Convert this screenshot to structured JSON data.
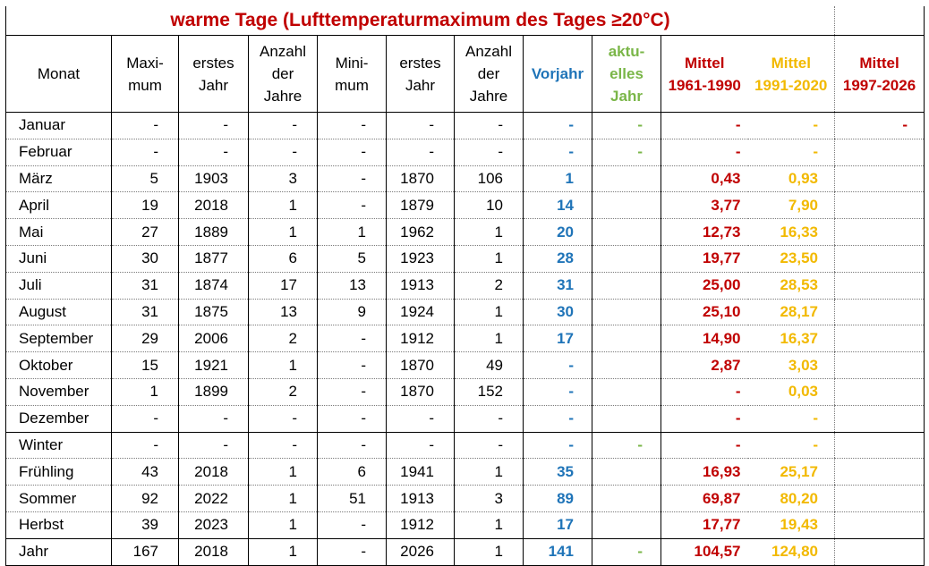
{
  "title": "warme Tage (Lufttemperaturmaximum des Tages ≥20°C)",
  "colors": {
    "title": "#c00000",
    "vorjahr": "#1f74b8",
    "aktuell": "#7ab648",
    "mittel_1961": "#c00000",
    "mittel_1991": "#f2b900",
    "mittel_1997": "#c00000"
  },
  "headers": {
    "monat": [
      "Monat"
    ],
    "maximum": [
      "Maxi-",
      "mum"
    ],
    "erstes_jahr_max": [
      "erstes",
      "Jahr"
    ],
    "anzahl_max": [
      "Anzahl",
      "der",
      "Jahre"
    ],
    "minimum": [
      "Mini-",
      "mum"
    ],
    "erstes_jahr_min": [
      "erstes",
      "Jahr"
    ],
    "anzahl_min": [
      "Anzahl",
      "der",
      "Jahre"
    ],
    "vorjahr": [
      "Vorjahr"
    ],
    "aktuell": [
      "aktu-",
      "elles",
      "Jahr"
    ],
    "mittel_1961": [
      "Mittel",
      "1961-1990"
    ],
    "mittel_1991": [
      "Mittel",
      "1991-2020"
    ],
    "mittel_1997": [
      "Mittel",
      "1997-2026"
    ]
  },
  "rows": [
    {
      "monat": "Januar",
      "max": "-",
      "jmax": "-",
      "nmax": "-",
      "min": "-",
      "jmin": "-",
      "nmin": "-",
      "vorjahr": "-",
      "aktuell": "-",
      "m1961": "-",
      "m1991": "-",
      "m1997": "-"
    },
    {
      "monat": "Februar",
      "max": "-",
      "jmax": "-",
      "nmax": "-",
      "min": "-",
      "jmin": "-",
      "nmin": "-",
      "vorjahr": "-",
      "aktuell": "-",
      "m1961": "-",
      "m1991": "-",
      "m1997": ""
    },
    {
      "monat": "März",
      "max": "5",
      "jmax": "1903",
      "nmax": "3",
      "min": "-",
      "jmin": "1870",
      "nmin": "106",
      "vorjahr": "1",
      "aktuell": "",
      "m1961": "0,43",
      "m1991": "0,93",
      "m1997": ""
    },
    {
      "monat": "April",
      "max": "19",
      "jmax": "2018",
      "nmax": "1",
      "min": "-",
      "jmin": "1879",
      "nmin": "10",
      "vorjahr": "14",
      "aktuell": "",
      "m1961": "3,77",
      "m1991": "7,90",
      "m1997": ""
    },
    {
      "monat": "Mai",
      "max": "27",
      "jmax": "1889",
      "nmax": "1",
      "min": "1",
      "jmin": "1962",
      "nmin": "1",
      "vorjahr": "20",
      "aktuell": "",
      "m1961": "12,73",
      "m1991": "16,33",
      "m1997": ""
    },
    {
      "monat": "Juni",
      "max": "30",
      "jmax": "1877",
      "nmax": "6",
      "min": "5",
      "jmin": "1923",
      "nmin": "1",
      "vorjahr": "28",
      "aktuell": "",
      "m1961": "19,77",
      "m1991": "23,50",
      "m1997": ""
    },
    {
      "monat": "Juli",
      "max": "31",
      "jmax": "1874",
      "nmax": "17",
      "min": "13",
      "jmin": "1913",
      "nmin": "2",
      "vorjahr": "31",
      "aktuell": "",
      "m1961": "25,00",
      "m1991": "28,53",
      "m1997": ""
    },
    {
      "monat": "August",
      "max": "31",
      "jmax": "1875",
      "nmax": "13",
      "min": "9",
      "jmin": "1924",
      "nmin": "1",
      "vorjahr": "30",
      "aktuell": "",
      "m1961": "25,10",
      "m1991": "28,17",
      "m1997": ""
    },
    {
      "monat": "September",
      "max": "29",
      "jmax": "2006",
      "nmax": "2",
      "min": "-",
      "jmin": "1912",
      "nmin": "1",
      "vorjahr": "17",
      "aktuell": "",
      "m1961": "14,90",
      "m1991": "16,37",
      "m1997": ""
    },
    {
      "monat": "Oktober",
      "max": "15",
      "jmax": "1921",
      "nmax": "1",
      "min": "-",
      "jmin": "1870",
      "nmin": "49",
      "vorjahr": "-",
      "aktuell": "",
      "m1961": "2,87",
      "m1991": "3,03",
      "m1997": ""
    },
    {
      "monat": "November",
      "max": "1",
      "jmax": "1899",
      "nmax": "2",
      "min": "-",
      "jmin": "1870",
      "nmin": "152",
      "vorjahr": "-",
      "aktuell": "",
      "m1961": "-",
      "m1991": "0,03",
      "m1997": ""
    },
    {
      "monat": "Dezember",
      "max": "-",
      "jmax": "-",
      "nmax": "-",
      "min": "-",
      "jmin": "-",
      "nmin": "-",
      "vorjahr": "-",
      "aktuell": "",
      "m1961": "-",
      "m1991": "-",
      "m1997": ""
    },
    {
      "monat": "Winter",
      "max": "-",
      "jmax": "-",
      "nmax": "-",
      "min": "-",
      "jmin": "-",
      "nmin": "-",
      "vorjahr": "-",
      "aktuell": "-",
      "m1961": "-",
      "m1991": "-",
      "m1997": ""
    },
    {
      "monat": "Frühling",
      "max": "43",
      "jmax": "2018",
      "nmax": "1",
      "min": "6",
      "jmin": "1941",
      "nmin": "1",
      "vorjahr": "35",
      "aktuell": "",
      "m1961": "16,93",
      "m1991": "25,17",
      "m1997": ""
    },
    {
      "monat": "Sommer",
      "max": "92",
      "jmax": "2022",
      "nmax": "1",
      "min": "51",
      "jmin": "1913",
      "nmin": "3",
      "vorjahr": "89",
      "aktuell": "",
      "m1961": "69,87",
      "m1991": "80,20",
      "m1997": ""
    },
    {
      "monat": "Herbst",
      "max": "39",
      "jmax": "2023",
      "nmax": "1",
      "min": "-",
      "jmin": "1912",
      "nmin": "1",
      "vorjahr": "17",
      "aktuell": "",
      "m1961": "17,77",
      "m1991": "19,43",
      "m1997": ""
    },
    {
      "monat": "Jahr",
      "max": "167",
      "jmax": "2018",
      "nmax": "1",
      "min": "-",
      "jmin": "2026",
      "nmin": "1",
      "vorjahr": "141",
      "aktuell": "-",
      "m1961": "104,57",
      "m1991": "124,80",
      "m1997": ""
    }
  ]
}
